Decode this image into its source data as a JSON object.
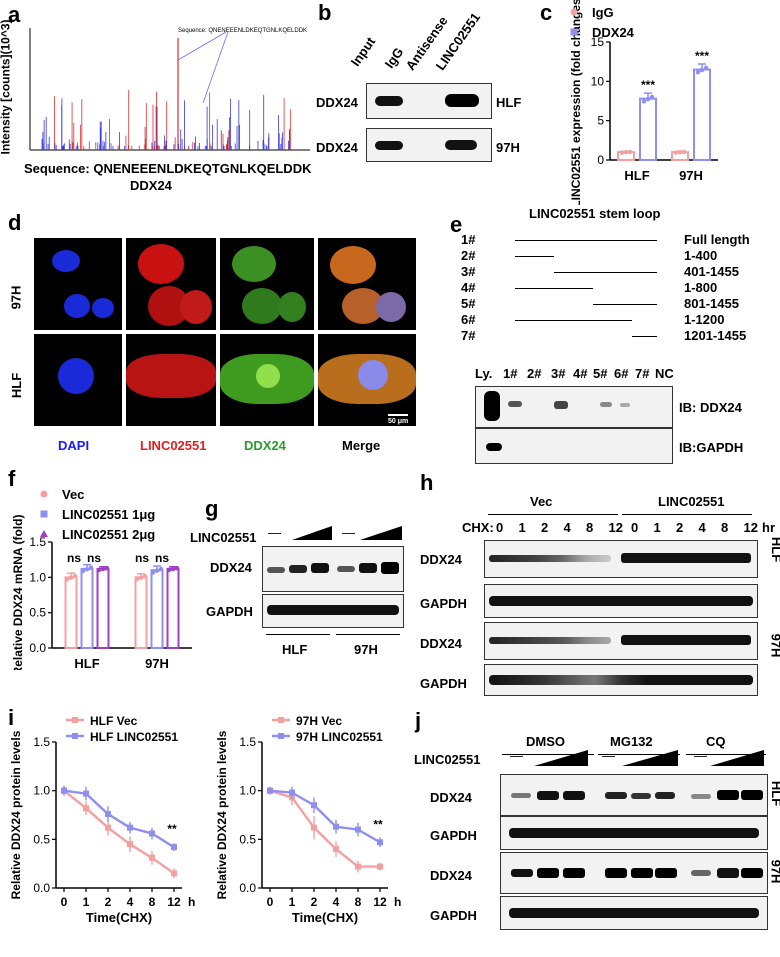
{
  "panels": {
    "a": "a",
    "b": "b",
    "c": "c",
    "d": "d",
    "e": "e",
    "f": "f",
    "g": "g",
    "h": "h",
    "i": "i",
    "j": "j"
  },
  "a": {
    "ylabel": "Intensity [counts](10^3)",
    "sequence_caption": "Sequence: QNENEEENLDKEQTGNLKQELDDK",
    "inset_sequence": "Sequence: QNENEEENLDKEQTGNLKQELDDK",
    "protein": "DDX24"
  },
  "b": {
    "lanes": [
      "Input",
      "IgG",
      "Antisense",
      "LINC02551"
    ],
    "rows": [
      {
        "protein": "DDX24",
        "cell": "HLF"
      },
      {
        "protein": "DDX24",
        "cell": "97H"
      }
    ]
  },
  "c": {
    "significance": [
      "***",
      "***"
    ]
  },
  "d": {
    "rows": [
      "97H",
      "HLF"
    ],
    "channels": [
      {
        "label": "DAPI",
        "color": "#1a1aff"
      },
      {
        "label": "LINC02551",
        "color": "#e41e1e"
      },
      {
        "label": "DDX24",
        "color": "#2a9d2a"
      },
      {
        "label": "Merge",
        "color": "#000000"
      }
    ],
    "scalebar": "50 μm"
  },
  "e": {
    "title": "LINC02551 stem loop",
    "constructs": [
      {
        "id": "1#",
        "range": "Full length",
        "start": 1,
        "end": 1455
      },
      {
        "id": "2#",
        "range": "1-400",
        "start": 1,
        "end": 400
      },
      {
        "id": "3#",
        "range": "401-1455",
        "start": 401,
        "end": 1455
      },
      {
        "id": "4#",
        "range": "1-800",
        "start": 1,
        "end": 800
      },
      {
        "id": "5#",
        "range": "801-1455",
        "start": 801,
        "end": 1455
      },
      {
        "id": "6#",
        "range": "1-1200",
        "start": 1,
        "end": 1200
      },
      {
        "id": "7#",
        "range": "1201-1455",
        "start": 1201,
        "end": 1455
      }
    ],
    "lanes": [
      "Ly.",
      "1#",
      "2#",
      "3#",
      "4#",
      "5#",
      "6#",
      "7#",
      "NC"
    ],
    "ib": [
      "IB: DDX24",
      "IB:GAPDH"
    ]
  },
  "f": {
    "significance": [
      "ns",
      "ns",
      "ns",
      "ns"
    ]
  },
  "g": {
    "treatment": "LINC02551",
    "dash": "—",
    "rows": [
      "DDX24",
      "GAPDH"
    ],
    "cells": [
      "HLF",
      "97H"
    ]
  },
  "h": {
    "groups": [
      "Vec",
      "LINC02551"
    ],
    "chx_label": "CHX:",
    "timepoints": [
      "0",
      "1",
      "2",
      "4",
      "8",
      "12",
      "0",
      "1",
      "2",
      "4",
      "8",
      "12"
    ],
    "unit": "hr",
    "rows": [
      "DDX24",
      "GAPDH",
      "DDX24",
      "GAPDH"
    ],
    "cells": [
      "HLF",
      "97H"
    ]
  },
  "i": {
    "significance": [
      "**",
      "**"
    ]
  },
  "j": {
    "groups": [
      "DMSO",
      "MG132",
      "CQ"
    ],
    "treatment": "LINC02551",
    "dash": "—",
    "rows": [
      "DDX24",
      "GAPDH",
      "DDX24",
      "GAPDH"
    ],
    "cells": [
      "HLF",
      "97H"
    ]
  },
  "chart_data": [
    {
      "id": "c",
      "type": "bar",
      "categories": [
        "HLF",
        "97H"
      ],
      "series": [
        {
          "name": "IgG",
          "values": [
            1.0,
            1.0
          ],
          "error": [
            0.1,
            0.1
          ],
          "color": "#f4a0a0"
        },
        {
          "name": "DDX24",
          "values": [
            7.8,
            11.5
          ],
          "error": [
            0.7,
            0.7
          ],
          "color": "#8f8ff0"
        }
      ],
      "ylabel": "LINC02551 expression (fold changes)",
      "ylim": [
        0,
        15
      ],
      "yticks": [
        "0",
        "5",
        "10",
        "15"
      ]
    },
    {
      "id": "f",
      "type": "bar",
      "categories": [
        "HLF",
        "97H"
      ],
      "series": [
        {
          "name": "Vec",
          "values": [
            1.0,
            1.0
          ],
          "error": [
            0.06,
            0.05
          ],
          "color": "#f4a0a0"
        },
        {
          "name": "LINC02551 1μg",
          "values": [
            1.12,
            1.1
          ],
          "error": [
            0.06,
            0.06
          ],
          "color": "#8f8ff0"
        },
        {
          "name": "LINC02551 2μg",
          "values": [
            1.12,
            1.12
          ],
          "error": [
            0.03,
            0.03
          ],
          "color": "#a040c0"
        }
      ],
      "ylabel": "Relative DDX24 mRNA (fold)",
      "ylim": [
        0,
        1.5
      ],
      "yticks": [
        "0.0",
        "0.5",
        "1.0",
        "1.5"
      ]
    },
    {
      "id": "i1",
      "type": "line",
      "x": [
        "0",
        "1",
        "2",
        "4",
        "8",
        "12"
      ],
      "series": [
        {
          "name": "HLF Vec",
          "values": [
            1.0,
            0.82,
            0.62,
            0.45,
            0.31,
            0.15
          ],
          "error": [
            0.05,
            0.07,
            0.08,
            0.08,
            0.07,
            0.05
          ],
          "color": "#f4a0a0"
        },
        {
          "name": "HLF LINC02551",
          "values": [
            1.0,
            0.97,
            0.76,
            0.62,
            0.56,
            0.42
          ],
          "error": [
            0.05,
            0.07,
            0.08,
            0.06,
            0.06,
            0.04
          ],
          "color": "#8f8ff0"
        }
      ],
      "xlabel": "Time(CHX)",
      "xunit": "h",
      "ylabel": "Relative DDX24 protein  levels",
      "ylim": [
        0,
        1.5
      ],
      "yticks": [
        "0.0",
        "0.5",
        "1.0",
        "1.5"
      ]
    },
    {
      "id": "i2",
      "type": "line",
      "x": [
        "0",
        "1",
        "2",
        "4",
        "8",
        "12"
      ],
      "series": [
        {
          "name": "97H Vec",
          "values": [
            1.0,
            0.93,
            0.62,
            0.4,
            0.22,
            0.22
          ],
          "error": [
            0.04,
            0.08,
            0.12,
            0.08,
            0.06,
            0.04
          ],
          "color": "#f4a0a0"
        },
        {
          "name": "97H LINC02551",
          "values": [
            1.0,
            0.98,
            0.85,
            0.63,
            0.6,
            0.47
          ],
          "error": [
            0.04,
            0.06,
            0.08,
            0.07,
            0.07,
            0.05
          ],
          "color": "#8f8ff0"
        }
      ],
      "xlabel": "Time(CHX)",
      "xunit": "h",
      "ylabel": "Relative DDX24 protein  levels",
      "ylim": [
        0,
        1.5
      ],
      "yticks": [
        "0.0",
        "0.5",
        "1.0",
        "1.5"
      ]
    }
  ]
}
